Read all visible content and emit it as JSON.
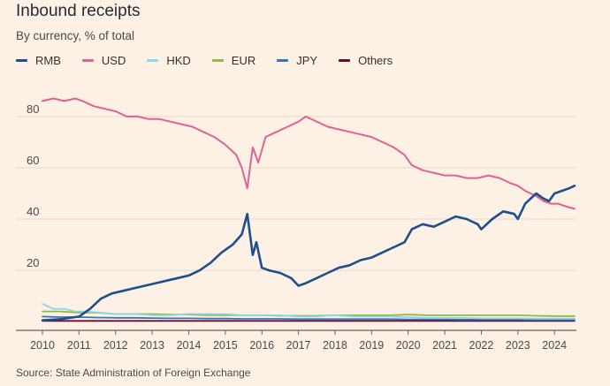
{
  "title": "Inbound receipts",
  "subtitle": "By currency, % of total",
  "source": "Source: State Administration of Foreign Exchange",
  "chart_data": {
    "type": "line",
    "title": "Inbound receipts",
    "subtitle": "By currency, % of total",
    "xlabel": "",
    "ylabel": "",
    "xlim": [
      2010,
      2024.6
    ],
    "ylim": [
      -2,
      92
    ],
    "yticks": [
      20,
      40,
      60,
      80
    ],
    "xticks": [
      "2010",
      "2011",
      "2012",
      "2013",
      "2014",
      "2015",
      "2016",
      "2017",
      "2018",
      "2019",
      "2020",
      "2021",
      "2022",
      "2023",
      "2024"
    ],
    "grid": true,
    "legend_position": "top-left",
    "series": [
      {
        "name": "RMB",
        "color": "#1f4e8c",
        "width": 2.6,
        "points": [
          [
            2010.0,
            0.5
          ],
          [
            2010.5,
            1
          ],
          [
            2011.0,
            2
          ],
          [
            2011.3,
            5
          ],
          [
            2011.6,
            9
          ],
          [
            2011.9,
            11
          ],
          [
            2012.2,
            12
          ],
          [
            2012.5,
            13
          ],
          [
            2012.8,
            14
          ],
          [
            2013.1,
            15
          ],
          [
            2013.4,
            16
          ],
          [
            2013.7,
            17
          ],
          [
            2014.0,
            18
          ],
          [
            2014.3,
            20
          ],
          [
            2014.6,
            23
          ],
          [
            2014.9,
            27
          ],
          [
            2015.2,
            30
          ],
          [
            2015.45,
            34
          ],
          [
            2015.6,
            42
          ],
          [
            2015.75,
            26
          ],
          [
            2015.85,
            31
          ],
          [
            2016.0,
            21
          ],
          [
            2016.2,
            20
          ],
          [
            2016.5,
            19
          ],
          [
            2016.8,
            17
          ],
          [
            2017.0,
            14
          ],
          [
            2017.2,
            15
          ],
          [
            2017.5,
            17
          ],
          [
            2017.8,
            19
          ],
          [
            2018.1,
            21
          ],
          [
            2018.4,
            22
          ],
          [
            2018.7,
            24
          ],
          [
            2019.0,
            25
          ],
          [
            2019.3,
            27
          ],
          [
            2019.6,
            29
          ],
          [
            2019.9,
            31
          ],
          [
            2020.1,
            36
          ],
          [
            2020.4,
            38
          ],
          [
            2020.7,
            37
          ],
          [
            2021.0,
            39
          ],
          [
            2021.3,
            41
          ],
          [
            2021.6,
            40
          ],
          [
            2021.9,
            38
          ],
          [
            2022.0,
            36
          ],
          [
            2022.3,
            40
          ],
          [
            2022.6,
            43
          ],
          [
            2022.9,
            42
          ],
          [
            2023.0,
            40
          ],
          [
            2023.2,
            46
          ],
          [
            2023.5,
            50
          ],
          [
            2023.7,
            48
          ],
          [
            2023.85,
            47
          ],
          [
            2024.0,
            50
          ],
          [
            2024.2,
            51
          ],
          [
            2024.4,
            52
          ],
          [
            2024.55,
            53
          ]
        ]
      },
      {
        "name": "USD",
        "color": "#e0628e",
        "width": 2,
        "points": [
          [
            2010.0,
            86
          ],
          [
            2010.3,
            87
          ],
          [
            2010.6,
            86
          ],
          [
            2010.9,
            87
          ],
          [
            2011.1,
            86
          ],
          [
            2011.4,
            84
          ],
          [
            2011.7,
            83
          ],
          [
            2012.0,
            82
          ],
          [
            2012.3,
            80
          ],
          [
            2012.6,
            80
          ],
          [
            2012.9,
            79
          ],
          [
            2013.2,
            79
          ],
          [
            2013.5,
            78
          ],
          [
            2013.8,
            77
          ],
          [
            2014.1,
            76
          ],
          [
            2014.4,
            74
          ],
          [
            2014.7,
            72
          ],
          [
            2015.0,
            69
          ],
          [
            2015.3,
            65
          ],
          [
            2015.45,
            60
          ],
          [
            2015.6,
            52
          ],
          [
            2015.75,
            68
          ],
          [
            2015.9,
            62
          ],
          [
            2016.1,
            72
          ],
          [
            2016.4,
            74
          ],
          [
            2016.7,
            76
          ],
          [
            2017.0,
            78
          ],
          [
            2017.2,
            80
          ],
          [
            2017.5,
            78
          ],
          [
            2017.8,
            76
          ],
          [
            2018.1,
            75
          ],
          [
            2018.4,
            74
          ],
          [
            2018.7,
            73
          ],
          [
            2019.0,
            72
          ],
          [
            2019.3,
            70
          ],
          [
            2019.6,
            68
          ],
          [
            2019.9,
            65
          ],
          [
            2020.1,
            61
          ],
          [
            2020.4,
            59
          ],
          [
            2020.7,
            58
          ],
          [
            2021.0,
            57
          ],
          [
            2021.3,
            57
          ],
          [
            2021.6,
            56
          ],
          [
            2021.9,
            56
          ],
          [
            2022.2,
            57
          ],
          [
            2022.5,
            56
          ],
          [
            2022.8,
            54
          ],
          [
            2023.0,
            53
          ],
          [
            2023.2,
            51
          ],
          [
            2023.5,
            49
          ],
          [
            2023.7,
            47
          ],
          [
            2023.9,
            46
          ],
          [
            2024.1,
            46
          ],
          [
            2024.3,
            45
          ],
          [
            2024.55,
            44
          ]
        ]
      },
      {
        "name": "HKD",
        "color": "#8fd4ea",
        "width": 1.8,
        "points": [
          [
            2010.0,
            7
          ],
          [
            2010.3,
            5
          ],
          [
            2010.6,
            5
          ],
          [
            2010.9,
            4
          ],
          [
            2011.2,
            4
          ],
          [
            2011.6,
            3.5
          ],
          [
            2012.0,
            3
          ],
          [
            2012.5,
            3
          ],
          [
            2013.0,
            2.5
          ],
          [
            2013.5,
            2.5
          ],
          [
            2014.0,
            3
          ],
          [
            2014.5,
            3
          ],
          [
            2015.0,
            3
          ],
          [
            2015.5,
            2.5
          ],
          [
            2016.0,
            2.5
          ],
          [
            2016.5,
            2.5
          ],
          [
            2017.0,
            2
          ],
          [
            2017.5,
            2
          ],
          [
            2018.0,
            2.5
          ],
          [
            2018.5,
            2
          ],
          [
            2019.0,
            2
          ],
          [
            2019.5,
            2
          ],
          [
            2020.0,
            1.8
          ],
          [
            2020.5,
            1.5
          ],
          [
            2021.0,
            1.5
          ],
          [
            2021.5,
            1.5
          ],
          [
            2022.0,
            1.3
          ],
          [
            2022.5,
            1.3
          ],
          [
            2023.0,
            1.3
          ],
          [
            2023.5,
            1.2
          ],
          [
            2024.0,
            1.2
          ],
          [
            2024.55,
            1.2
          ]
        ]
      },
      {
        "name": "EUR",
        "color": "#8fba3c",
        "width": 1.8,
        "points": [
          [
            2010.0,
            4
          ],
          [
            2010.5,
            4
          ],
          [
            2011.0,
            3.5
          ],
          [
            2011.5,
            3.5
          ],
          [
            2012.0,
            3
          ],
          [
            2012.5,
            3
          ],
          [
            2013.0,
            3
          ],
          [
            2013.5,
            2.8
          ],
          [
            2014.0,
            2.8
          ],
          [
            2014.5,
            2.5
          ],
          [
            2015.0,
            2.5
          ],
          [
            2015.5,
            2.5
          ],
          [
            2016.0,
            2.5
          ],
          [
            2016.5,
            2.3
          ],
          [
            2017.0,
            2.3
          ],
          [
            2017.5,
            2.3
          ],
          [
            2018.0,
            2.5
          ],
          [
            2018.5,
            2.5
          ],
          [
            2019.0,
            2.5
          ],
          [
            2019.5,
            2.5
          ],
          [
            2020.0,
            2.8
          ],
          [
            2020.5,
            2.5
          ],
          [
            2021.0,
            2.5
          ],
          [
            2021.5,
            2.5
          ],
          [
            2022.0,
            2.5
          ],
          [
            2022.5,
            2.5
          ],
          [
            2023.0,
            2.5
          ],
          [
            2023.5,
            2.3
          ],
          [
            2024.0,
            2.2
          ],
          [
            2024.55,
            2.2
          ]
        ]
      },
      {
        "name": "JPY",
        "color": "#2f77b8",
        "width": 1.8,
        "points": [
          [
            2010.0,
            2
          ],
          [
            2010.5,
            1.8
          ],
          [
            2011.0,
            1.8
          ],
          [
            2011.5,
            1.6
          ],
          [
            2012.0,
            1.5
          ],
          [
            2012.5,
            1.5
          ],
          [
            2013.0,
            1.4
          ],
          [
            2013.5,
            1.3
          ],
          [
            2014.0,
            1.3
          ],
          [
            2014.5,
            1.2
          ],
          [
            2015.0,
            1.2
          ],
          [
            2015.5,
            1.1
          ],
          [
            2016.0,
            1.1
          ],
          [
            2016.5,
            1.1
          ],
          [
            2017.0,
            1
          ],
          [
            2017.5,
            1
          ],
          [
            2018.0,
            1
          ],
          [
            2018.5,
            1
          ],
          [
            2019.0,
            1
          ],
          [
            2019.5,
            1
          ],
          [
            2020.0,
            0.9
          ],
          [
            2020.5,
            0.9
          ],
          [
            2021.0,
            0.9
          ],
          [
            2021.5,
            0.8
          ],
          [
            2022.0,
            0.8
          ],
          [
            2022.5,
            0.8
          ],
          [
            2023.0,
            0.8
          ],
          [
            2023.5,
            0.7
          ],
          [
            2024.0,
            0.7
          ],
          [
            2024.55,
            0.7
          ]
        ]
      },
      {
        "name": "Others",
        "color": "#6b0a2e",
        "width": 1.8,
        "points": [
          [
            2010.0,
            0.3
          ],
          [
            2011.0,
            0.3
          ],
          [
            2012.0,
            0.3
          ],
          [
            2013.0,
            0.3
          ],
          [
            2014.0,
            0.3
          ],
          [
            2015.0,
            0.3
          ],
          [
            2016.0,
            0.3
          ],
          [
            2017.0,
            0.3
          ],
          [
            2018.0,
            0.3
          ],
          [
            2019.0,
            0.3
          ],
          [
            2020.0,
            0.3
          ],
          [
            2021.0,
            0.3
          ],
          [
            2022.0,
            0.3
          ],
          [
            2023.0,
            0.3
          ],
          [
            2024.0,
            0.3
          ],
          [
            2024.55,
            0.3
          ]
        ]
      }
    ]
  }
}
